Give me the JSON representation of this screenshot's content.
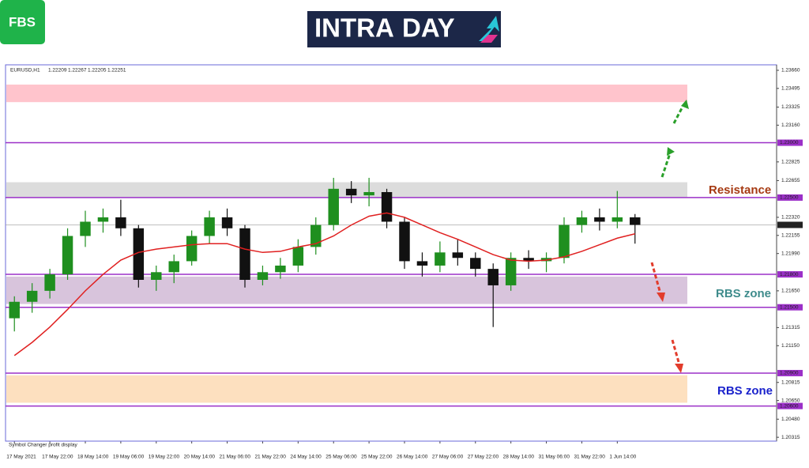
{
  "header": {
    "logo": "FBS",
    "title_left": "INTRA",
    "title_right": "DAY"
  },
  "chart_data": {
    "type": "candlestick",
    "symbol": "EURUSD,H1",
    "quote": [
      1.22209,
      1.22267,
      1.22205,
      1.22251
    ],
    "footer_text": "Symbol Changer profit display",
    "categories": [
      "17 May 2021",
      null,
      "17 May 22:00",
      null,
      "18 May 14:00",
      null,
      "19 May 06:00",
      null,
      "19 May 22:00",
      null,
      "20 May 14:00",
      null,
      "21 May 06:00",
      null,
      "21 May 22:00",
      null,
      "24 May 14:00",
      null,
      "25 May 06:00",
      null,
      "25 May 22:00",
      null,
      "26 May 14:00",
      null,
      "27 May 06:00",
      null,
      "27 May 22:00",
      null,
      "28 May 14:00",
      null,
      "31 May 06:00",
      null,
      "31 May 22:00",
      null,
      "1 Jun 14:00",
      null
    ],
    "open": [
      1.214,
      1.2155,
      1.2165,
      1.218,
      1.2215,
      1.2228,
      1.2232,
      1.2222,
      1.2175,
      1.2182,
      1.2192,
      1.2215,
      1.2232,
      1.2222,
      1.2175,
      1.2182,
      1.2188,
      1.2205,
      1.2225,
      1.2258,
      1.2252,
      1.2255,
      1.2228,
      1.2192,
      1.2188,
      1.22,
      1.2195,
      1.2185,
      1.217,
      1.2195,
      1.2192,
      1.2195,
      1.2225,
      1.2232,
      1.2228,
      1.2232
    ],
    "high": [
      1.216,
      1.2172,
      1.2185,
      1.2222,
      1.2238,
      1.224,
      1.2248,
      1.2225,
      1.2188,
      1.2198,
      1.222,
      1.2238,
      1.224,
      1.2225,
      1.2188,
      1.2195,
      1.2212,
      1.2232,
      1.2268,
      1.2265,
      1.2268,
      1.2258,
      1.2232,
      1.22,
      1.221,
      1.2212,
      1.22,
      1.219,
      1.22,
      1.2202,
      1.22,
      1.2232,
      1.2238,
      1.224,
      1.2256,
      1.2235
    ],
    "low": [
      1.2128,
      1.2145,
      1.2158,
      1.2175,
      1.2205,
      1.2218,
      1.2215,
      1.2168,
      1.2165,
      1.2172,
      1.2188,
      1.2208,
      1.2215,
      1.2168,
      1.217,
      1.2176,
      1.2182,
      1.2198,
      1.222,
      1.2245,
      1.2242,
      1.2222,
      1.2185,
      1.2178,
      1.2182,
      1.2188,
      1.2178,
      1.2132,
      1.2165,
      1.2185,
      1.2182,
      1.219,
      1.2218,
      1.222,
      1.2222,
      1.2208
    ],
    "close": [
      1.2155,
      1.2165,
      1.218,
      1.2215,
      1.2228,
      1.2232,
      1.2222,
      1.2175,
      1.2182,
      1.2192,
      1.2215,
      1.2232,
      1.2222,
      1.2175,
      1.2182,
      1.2188,
      1.2205,
      1.2225,
      1.2258,
      1.2252,
      1.2255,
      1.2228,
      1.2192,
      1.2188,
      1.22,
      1.2195,
      1.2185,
      1.217,
      1.2195,
      1.2192,
      1.2195,
      1.2225,
      1.2232,
      1.2228,
      1.2232,
      1.22251
    ],
    "up_color": "#1f8f1f",
    "down_color": "#111111",
    "ma": {
      "color": "#e02020",
      "values": [
        1.2106,
        1.2118,
        1.2132,
        1.2148,
        1.2165,
        1.218,
        1.2193,
        1.22,
        1.2203,
        1.2205,
        1.2207,
        1.2208,
        1.2208,
        1.2203,
        1.22,
        1.2201,
        1.2205,
        1.2208,
        1.2215,
        1.2225,
        1.2233,
        1.2236,
        1.2232,
        1.2225,
        1.2218,
        1.2212,
        1.2205,
        1.2198,
        1.2193,
        1.2192,
        1.2193,
        1.2196,
        1.2201,
        1.2207,
        1.2213,
        1.2217
      ]
    },
    "ylim": [
      1.2028,
      1.2371
    ],
    "yticks": [
      {
        "value": 1.2366,
        "label": "1.23660"
      },
      {
        "value": 1.23495,
        "label": "1.23495"
      },
      {
        "value": 1.23325,
        "label": "1.23325"
      },
      {
        "value": 1.2316,
        "label": "1.23160"
      },
      {
        "value": 1.22825,
        "label": "1.22825"
      },
      {
        "value": 1.22655,
        "label": "1.22655"
      },
      {
        "value": 1.2232,
        "label": "1.22320"
      },
      {
        "value": 1.22155,
        "label": "1.22155"
      },
      {
        "value": 1.2199,
        "label": "1.21990"
      },
      {
        "value": 1.2165,
        "label": "1.21650"
      },
      {
        "value": 1.21315,
        "label": "1.21315"
      },
      {
        "value": 1.2115,
        "label": "1.21150"
      },
      {
        "value": 1.20815,
        "label": "1.20815"
      },
      {
        "value": 1.2065,
        "label": "1.20650"
      },
      {
        "value": 1.2048,
        "label": "1.20480"
      },
      {
        "value": 1.20315,
        "label": "1.20315"
      }
    ],
    "levels": [
      {
        "value": 1.23,
        "label": "1.23000"
      },
      {
        "value": 1.225,
        "label": "1.22500"
      },
      {
        "value": 1.218,
        "label": "1.21800"
      },
      {
        "value": 1.215,
        "label": "1.21500"
      },
      {
        "value": 1.209,
        "label": "1.20900"
      },
      {
        "value": 1.206,
        "label": "1.20600"
      }
    ],
    "level_color": "#9b30c8",
    "last_price": 1.22251,
    "zones": [
      {
        "from": 1.2337,
        "to": 1.2353,
        "color": "#ffc4cc"
      },
      {
        "from": 1.225,
        "to": 1.2264,
        "color": "#dcdcdc"
      },
      {
        "from": 1.2153,
        "to": 1.2178,
        "color": "#d8c4dc"
      },
      {
        "from": 1.2063,
        "to": 1.2088,
        "color": "#fde0bf"
      }
    ],
    "annotations": [
      {
        "text": "Resistance",
        "color": "#a63a12"
      },
      {
        "text": "RBS zone",
        "color": "#3f8c8c"
      },
      {
        "text": "RBS zone",
        "color": "#1a22cc"
      }
    ]
  }
}
